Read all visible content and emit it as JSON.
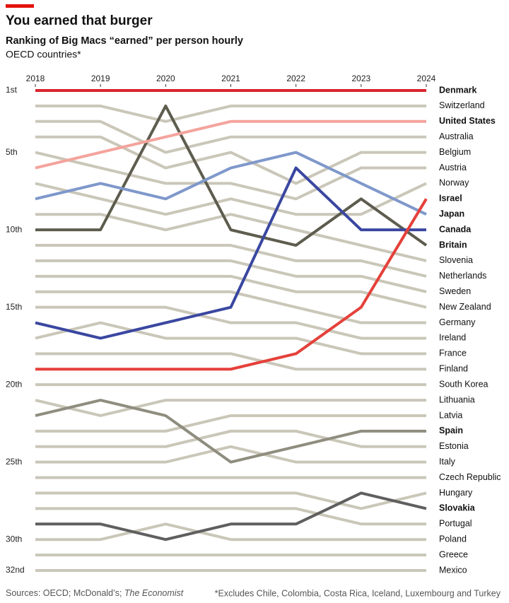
{
  "chart_data": {
    "type": "bump",
    "title": "You earned that burger",
    "subtitle": "Ranking of Big Macs “earned” per person hourly",
    "subtitle2": "OECD countries*",
    "source": "Sources: OECD; McDonald’s;",
    "source_italic": "The Economist",
    "note": "*Excludes Chile, Colombia, Costa Rica, Iceland, Luxembourg and Turkey",
    "x": [
      2018,
      2019,
      2020,
      2021,
      2022,
      2023,
      2024
    ],
    "ylim": [
      1,
      32
    ],
    "inverted": true,
    "yticks": [
      {
        "value": 1,
        "label": "1st"
      },
      {
        "value": 5,
        "label": "5th"
      },
      {
        "value": 10,
        "label": "10th"
      },
      {
        "value": 15,
        "label": "15th"
      },
      {
        "value": 20,
        "label": "20th"
      },
      {
        "value": 25,
        "label": "25th"
      },
      {
        "value": 30,
        "label": "30th"
      },
      {
        "value": 32,
        "label": "32nd"
      }
    ],
    "series": [
      {
        "name": "Switzerland",
        "color": "#cac7b9",
        "values": [
          2,
          2,
          3,
          2,
          2,
          2,
          2
        ]
      },
      {
        "name": "Australia",
        "color": "#cac7b9",
        "values": [
          3,
          3,
          5,
          4,
          4,
          4,
          4
        ]
      },
      {
        "name": "Belgium",
        "color": "#cac7b9",
        "values": [
          4,
          4,
          6,
          5,
          7,
          5,
          5
        ]
      },
      {
        "name": "Austria",
        "color": "#cac7b9",
        "values": [
          5,
          6,
          7,
          7,
          8,
          6,
          6
        ]
      },
      {
        "name": "Norway",
        "color": "#cac7b9",
        "values": [
          7,
          8,
          9,
          8,
          9,
          9,
          7
        ]
      },
      {
        "name": "Slovenia",
        "color": "#cac7b9",
        "values": [
          9,
          9,
          10,
          9,
          10,
          11,
          12
        ]
      },
      {
        "name": "Netherlands",
        "color": "#cac7b9",
        "values": [
          11,
          11,
          11,
          11,
          12,
          12,
          13
        ]
      },
      {
        "name": "Sweden",
        "color": "#cac7b9",
        "values": [
          12,
          12,
          12,
          12,
          13,
          13,
          14
        ]
      },
      {
        "name": "New Zealand",
        "color": "#cac7b9",
        "values": [
          13,
          13,
          13,
          13,
          14,
          14,
          15
        ]
      },
      {
        "name": "Germany",
        "color": "#cac7b9",
        "values": [
          14,
          14,
          14,
          14,
          15,
          16,
          16
        ]
      },
      {
        "name": "Ireland",
        "color": "#cac7b9",
        "values": [
          15,
          15,
          15,
          16,
          16,
          17,
          17
        ]
      },
      {
        "name": "France",
        "color": "#cac7b9",
        "values": [
          17,
          16,
          17,
          17,
          17,
          18,
          18
        ]
      },
      {
        "name": "Finland",
        "color": "#cac7b9",
        "values": [
          18,
          18,
          18,
          18,
          19,
          19,
          19
        ]
      },
      {
        "name": "South Korea",
        "color": "#cac7b9",
        "values": [
          20,
          20,
          20,
          20,
          20,
          20,
          20
        ]
      },
      {
        "name": "Lithuania",
        "color": "#cac7b9",
        "values": [
          21,
          22,
          21,
          21,
          21,
          21,
          21
        ]
      },
      {
        "name": "Latvia",
        "color": "#cac7b9",
        "values": [
          23,
          23,
          23,
          22,
          22,
          22,
          22
        ]
      },
      {
        "name": "Estonia",
        "color": "#cac7b9",
        "values": [
          24,
          24,
          24,
          23,
          23,
          24,
          24
        ]
      },
      {
        "name": "Italy",
        "color": "#cac7b9",
        "values": [
          25,
          25,
          25,
          24,
          25,
          25,
          25
        ]
      },
      {
        "name": "Czech Republic",
        "color": "#cac7b9",
        "values": [
          26,
          26,
          26,
          26,
          26,
          26,
          26
        ]
      },
      {
        "name": "Hungary",
        "color": "#cac7b9",
        "values": [
          27,
          27,
          27,
          27,
          27,
          28,
          27
        ]
      },
      {
        "name": "Portugal",
        "color": "#cac7b9",
        "values": [
          28,
          28,
          28,
          28,
          28,
          29,
          29
        ]
      },
      {
        "name": "Poland",
        "color": "#cac7b9",
        "values": [
          30,
          30,
          29,
          30,
          30,
          30,
          30
        ]
      },
      {
        "name": "Greece",
        "color": "#cac7b9",
        "values": [
          31,
          31,
          31,
          31,
          31,
          31,
          31
        ]
      },
      {
        "name": "Mexico",
        "color": "#cac7b9",
        "values": [
          32,
          32,
          32,
          32,
          32,
          32,
          32
        ]
      },
      {
        "name": "Spain",
        "color": "#8f8d7f",
        "highlight": true,
        "values": [
          22,
          21,
          22,
          25,
          24,
          23,
          23
        ]
      },
      {
        "name": "Slovakia",
        "color": "#5f5f5f",
        "highlight": true,
        "values": [
          29,
          29,
          30,
          29,
          29,
          27,
          28
        ]
      },
      {
        "name": "Britain",
        "color": "#5d5c4e",
        "highlight": true,
        "values": [
          10,
          10,
          2,
          10,
          11,
          8,
          11
        ]
      },
      {
        "name": "United States",
        "color": "#f4a39c",
        "highlight": true,
        "values": [
          6,
          5,
          4,
          3,
          3,
          3,
          3
        ]
      },
      {
        "name": "Japan",
        "color": "#7f98cb",
        "highlight": true,
        "values": [
          8,
          7,
          8,
          6,
          5,
          7,
          9
        ]
      },
      {
        "name": "Canada",
        "color": "#3a47a0",
        "highlight": true,
        "values": [
          16,
          17,
          16,
          15,
          6,
          10,
          10
        ]
      },
      {
        "name": "Israel",
        "color": "#e5403a",
        "highlight": true,
        "values": [
          19,
          19,
          19,
          19,
          18,
          15,
          8
        ]
      },
      {
        "name": "Denmark",
        "color": "#d9232d",
        "highlight": true,
        "values": [
          1,
          1,
          1,
          1,
          1,
          1,
          1
        ]
      }
    ]
  }
}
